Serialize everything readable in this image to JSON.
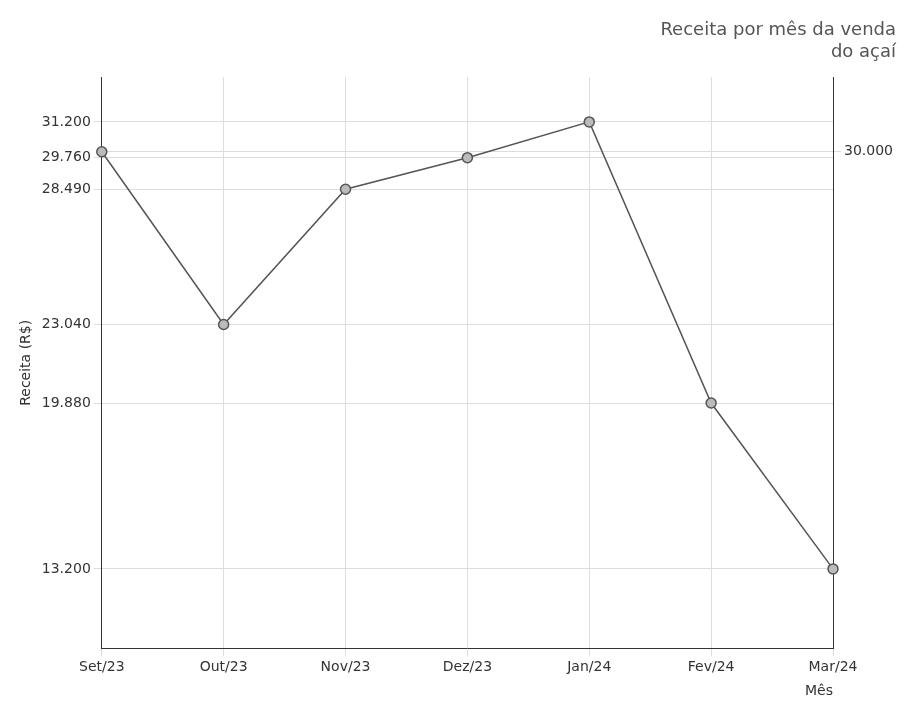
{
  "chart_data": {
    "type": "line",
    "title": "Receita por mês da venda do açaí",
    "x_label": "Mês",
    "y_label": "Receita (R$)",
    "categories": [
      "Set/23",
      "Out/23",
      "Nov/23",
      "Dez/23",
      "Jan/24",
      "Fev/24",
      "Mar/24"
    ],
    "values": [
      30000,
      23040,
      28490,
      29760,
      31200,
      19880,
      13200
    ],
    "color": "#555555",
    "marker": "circle",
    "ylim": [
      10000,
      33000
    ],
    "yticks": [
      {
        "value": 13200,
        "label": "13.200"
      },
      {
        "value": 19880,
        "label": "19.880"
      },
      {
        "value": 23040,
        "label": "23.040"
      },
      {
        "value": 28490,
        "label": "28.490"
      },
      {
        "value": 29760,
        "label": "29.760"
      },
      {
        "value": 30000,
        "label": "30.000"
      },
      {
        "value": 31200,
        "label": "31.200"
      }
    ],
    "grid": true
  }
}
